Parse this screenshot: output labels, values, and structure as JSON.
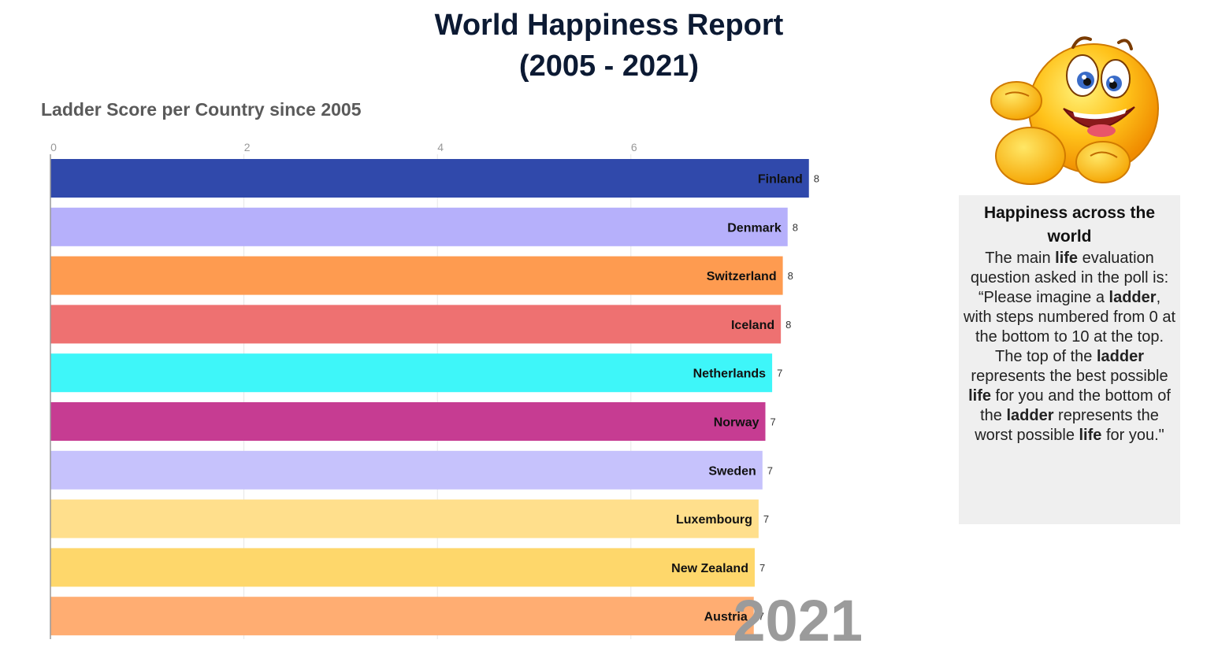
{
  "header": {
    "title_line1": "World Happiness Report",
    "title_line2": "(2005 - 2021)",
    "subtitle": "Ladder Score per Country since 2005"
  },
  "chart_data": {
    "type": "bar",
    "orientation": "horizontal",
    "title": "Ladder Score per Country since 2005",
    "xaxis_ticks": [
      "0",
      "2",
      "4",
      "6"
    ],
    "xlim": [
      0,
      8
    ],
    "grid": true,
    "year_label": "2021",
    "categories": [
      "Finland",
      "Denmark",
      "Switzerland",
      "Iceland",
      "Netherlands",
      "Norway",
      "Sweden",
      "Luxembourg",
      "New Zealand",
      "Austria"
    ],
    "values": [
      7.84,
      7.62,
      7.57,
      7.55,
      7.46,
      7.39,
      7.36,
      7.32,
      7.28,
      7.27
    ],
    "value_labels": [
      "8",
      "8",
      "8",
      "8",
      "7",
      "7",
      "7",
      "7",
      "7",
      "7"
    ],
    "colors": [
      "#3049ab",
      "#b6b0fb",
      "#fe9b50",
      "#ee7171",
      "#3ef6f9",
      "#c63c92",
      "#c6c2fc",
      "#ffdf8c",
      "#fed76b",
      "#ffad72"
    ]
  },
  "info_panel": {
    "title": "Happiness across the world",
    "paragraph": [
      {
        "text": "The main ",
        "bold": false
      },
      {
        "text": "life",
        "bold": true
      },
      {
        "text": " evaluation question asked in the poll is:",
        "bold": false
      },
      {
        "text": "“Please imagine a ",
        "bold": false,
        "break_before": true
      },
      {
        "text": "ladder",
        "bold": true
      },
      {
        "text": ", with steps numbered from 0 at the bottom to 10 at the top. The top of the ",
        "bold": false
      },
      {
        "text": "ladder",
        "bold": true
      },
      {
        "text": " represents the best possible ",
        "bold": false
      },
      {
        "text": "life",
        "bold": true
      },
      {
        "text": " for you and the bottom of the ",
        "bold": false
      },
      {
        "text": "ladder",
        "bold": true
      },
      {
        "text": " represents the worst possible ",
        "bold": false
      },
      {
        "text": "life",
        "bold": true
      },
      {
        "text": " for you.\"",
        "bold": false
      }
    ]
  },
  "emoji_icon": "happy-smiley-icon"
}
